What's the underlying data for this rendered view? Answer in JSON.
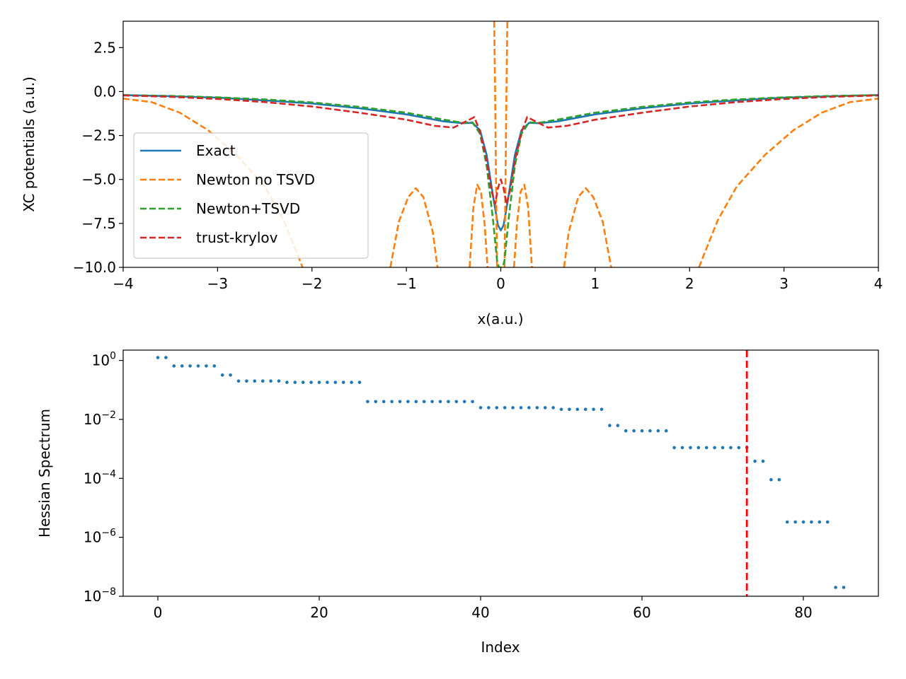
{
  "chart_data": [
    {
      "type": "line",
      "xlabel": "x(a.u.)",
      "ylabel": "XC potentials (a.u.)",
      "xlim": [
        -4,
        4
      ],
      "ylim": [
        -10,
        4
      ],
      "xticks": [
        -4,
        -3,
        -2,
        -1,
        0,
        1,
        2,
        3,
        4
      ],
      "yticks": [
        -10,
        -7.5,
        -5,
        -2.5,
        0,
        2.5
      ],
      "xtick_labels": [
        "−4",
        "−3",
        "−2",
        "−1",
        "0",
        "1",
        "2",
        "3",
        "4"
      ],
      "ytick_labels": [
        "−10.0",
        "−7.5",
        "−5.0",
        "−2.5",
        "0.0",
        "2.5"
      ],
      "legend_position": "lower-left",
      "series": [
        {
          "name": "Exact",
          "color": "#1f77b4",
          "style": "solid",
          "points": [
            [
              -4,
              -0.2
            ],
            [
              -3.5,
              -0.27
            ],
            [
              -3,
              -0.35
            ],
            [
              -2.5,
              -0.5
            ],
            [
              -2,
              -0.68
            ],
            [
              -1.5,
              -0.95
            ],
            [
              -1,
              -1.3
            ],
            [
              -0.6,
              -1.7
            ],
            [
              -0.4,
              -1.8
            ],
            [
              -0.3,
              -1.78
            ],
            [
              -0.22,
              -2.2
            ],
            [
              -0.15,
              -3.6
            ],
            [
              -0.08,
              -6.0
            ],
            [
              -0.03,
              -7.6
            ],
            [
              0,
              -7.9
            ],
            [
              0.03,
              -7.6
            ],
            [
              0.08,
              -6.0
            ],
            [
              0.15,
              -3.6
            ],
            [
              0.22,
              -2.2
            ],
            [
              0.3,
              -1.78
            ],
            [
              0.4,
              -1.8
            ],
            [
              0.6,
              -1.7
            ],
            [
              1,
              -1.3
            ],
            [
              1.5,
              -0.95
            ],
            [
              2,
              -0.68
            ],
            [
              2.5,
              -0.5
            ],
            [
              3,
              -0.35
            ],
            [
              3.5,
              -0.27
            ],
            [
              4,
              -0.2
            ]
          ]
        },
        {
          "name": "Newton no TSVD",
          "color": "#ff7f0e",
          "style": "dashed",
          "segments": [
            [
              [
                -4,
                -0.4
              ],
              [
                -3.7,
                -0.6
              ],
              [
                -3.4,
                -1.2
              ],
              [
                -3.1,
                -2.2
              ],
              [
                -2.8,
                -3.6
              ],
              [
                -2.5,
                -5.4
              ],
              [
                -2.3,
                -7.3
              ],
              [
                -2.15,
                -9.3
              ],
              [
                -2.1,
                -10
              ]
            ],
            [
              [
                -1.17,
                -10
              ],
              [
                -1.08,
                -7.4
              ],
              [
                -0.98,
                -6.0
              ],
              [
                -0.9,
                -5.5
              ],
              [
                -0.82,
                -6.0
              ],
              [
                -0.72,
                -8.0
              ],
              [
                -0.67,
                -10
              ]
            ],
            [
              [
                -0.33,
                -10
              ],
              [
                -0.29,
                -6.6
              ],
              [
                -0.25,
                -5.3
              ],
              [
                -0.21,
                -5.7
              ],
              [
                -0.17,
                -7.6
              ],
              [
                -0.14,
                -10
              ]
            ],
            [
              [
                -0.07,
                4
              ],
              [
                -0.06,
                0
              ],
              [
                -0.05,
                -5
              ],
              [
                -0.04,
                -10
              ]
            ],
            [
              [
                0.04,
                -10
              ],
              [
                0.05,
                -5
              ],
              [
                0.06,
                0
              ],
              [
                0.07,
                4
              ]
            ],
            [
              [
                0.14,
                -10
              ],
              [
                0.17,
                -7.6
              ],
              [
                0.21,
                -5.7
              ],
              [
                0.25,
                -5.3
              ],
              [
                0.29,
                -6.6
              ],
              [
                0.33,
                -10
              ]
            ],
            [
              [
                0.67,
                -10
              ],
              [
                0.72,
                -8.0
              ],
              [
                0.82,
                -6.0
              ],
              [
                0.9,
                -5.5
              ],
              [
                0.98,
                -6.0
              ],
              [
                1.08,
                -7.4
              ],
              [
                1.17,
                -10
              ]
            ],
            [
              [
                2.1,
                -10
              ],
              [
                2.15,
                -9.3
              ],
              [
                2.3,
                -7.3
              ],
              [
                2.5,
                -5.4
              ],
              [
                2.8,
                -3.6
              ],
              [
                3.1,
                -2.2
              ],
              [
                3.4,
                -1.2
              ],
              [
                3.7,
                -0.6
              ],
              [
                4,
                -0.4
              ]
            ]
          ]
        },
        {
          "name": "Newton+TSVD",
          "color": "#2ca02c",
          "style": "dashed",
          "points": [
            [
              -4,
              -0.2
            ],
            [
              -3.5,
              -0.25
            ],
            [
              -3,
              -0.33
            ],
            [
              -2.5,
              -0.45
            ],
            [
              -2,
              -0.62
            ],
            [
              -1.5,
              -0.87
            ],
            [
              -1,
              -1.2
            ],
            [
              -0.6,
              -1.6
            ],
            [
              -0.4,
              -1.78
            ],
            [
              -0.3,
              -1.75
            ],
            [
              -0.22,
              -2.4
            ],
            [
              -0.15,
              -4.2
            ],
            [
              -0.08,
              -7.4
            ],
            [
              -0.04,
              -9.6
            ],
            [
              -0.02,
              -10
            ],
            [
              0.02,
              -10
            ],
            [
              0.04,
              -9.6
            ],
            [
              0.08,
              -7.4
            ],
            [
              0.15,
              -4.2
            ],
            [
              0.22,
              -2.4
            ],
            [
              0.3,
              -1.75
            ],
            [
              0.4,
              -1.78
            ],
            [
              0.6,
              -1.6
            ],
            [
              1,
              -1.2
            ],
            [
              1.5,
              -0.87
            ],
            [
              2,
              -0.62
            ],
            [
              2.5,
              -0.45
            ],
            [
              3,
              -0.33
            ],
            [
              3.5,
              -0.25
            ],
            [
              4,
              -0.2
            ]
          ]
        },
        {
          "name": "trust-krylov",
          "color": "#d62728",
          "style": "dashed",
          "points": [
            [
              -4,
              -0.22
            ],
            [
              -3.5,
              -0.3
            ],
            [
              -3,
              -0.42
            ],
            [
              -2.5,
              -0.6
            ],
            [
              -2,
              -0.85
            ],
            [
              -1.5,
              -1.2
            ],
            [
              -1,
              -1.6
            ],
            [
              -0.7,
              -1.95
            ],
            [
              -0.5,
              -2.05
            ],
            [
              -0.35,
              -1.65
            ],
            [
              -0.28,
              -1.45
            ],
            [
              -0.22,
              -2.3
            ],
            [
              -0.15,
              -3.9
            ],
            [
              -0.1,
              -5.6
            ],
            [
              -0.06,
              -6.4
            ],
            [
              -0.03,
              -5.5
            ],
            [
              0,
              -5.0
            ],
            [
              0.03,
              -5.5
            ],
            [
              0.06,
              -6.4
            ],
            [
              0.1,
              -5.6
            ],
            [
              0.15,
              -3.9
            ],
            [
              0.22,
              -2.3
            ],
            [
              0.28,
              -1.45
            ],
            [
              0.35,
              -1.65
            ],
            [
              0.5,
              -2.05
            ],
            [
              0.7,
              -1.95
            ],
            [
              1,
              -1.6
            ],
            [
              1.5,
              -1.2
            ],
            [
              2,
              -0.85
            ],
            [
              2.5,
              -0.6
            ],
            [
              3,
              -0.42
            ],
            [
              3.5,
              -0.3
            ],
            [
              4,
              -0.22
            ]
          ]
        }
      ]
    },
    {
      "type": "scatter",
      "xlabel": "Index",
      "ylabel": "Hessian Spectrum",
      "yscale": "log",
      "xlim": [
        -4.3,
        89.3
      ],
      "ylim_log10": [
        -8,
        0.35
      ],
      "xticks": [
        0,
        20,
        40,
        60,
        80
      ],
      "ytick_exponents": [
        0,
        -2,
        -4,
        -6,
        -8
      ],
      "ytick_base": "10",
      "marker_color": "#1f77b4",
      "vline": {
        "x": 73,
        "color": "#ff0000",
        "style": "dashed"
      },
      "groups": [
        {
          "start": 0,
          "end": 1,
          "value": 1.25
        },
        {
          "start": 2,
          "end": 7,
          "value": 0.65
        },
        {
          "start": 8,
          "end": 9,
          "value": 0.32
        },
        {
          "start": 10,
          "end": 15,
          "value": 0.2
        },
        {
          "start": 16,
          "end": 25,
          "value": 0.18
        },
        {
          "start": 26,
          "end": 39,
          "value": 0.04
        },
        {
          "start": 40,
          "end": 49,
          "value": 0.025
        },
        {
          "start": 50,
          "end": 55,
          "value": 0.022
        },
        {
          "start": 56,
          "end": 57,
          "value": 0.0062
        },
        {
          "start": 58,
          "end": 63,
          "value": 0.0041
        },
        {
          "start": 64,
          "end": 73,
          "value": 0.0011
        },
        {
          "start": 74,
          "end": 75,
          "value": 0.00038
        },
        {
          "start": 76,
          "end": 77,
          "value": 9e-05
        },
        {
          "start": 78,
          "end": 83,
          "value": 3.3e-06
        },
        {
          "start": 84,
          "end": 85,
          "value": 2e-08
        }
      ]
    }
  ]
}
